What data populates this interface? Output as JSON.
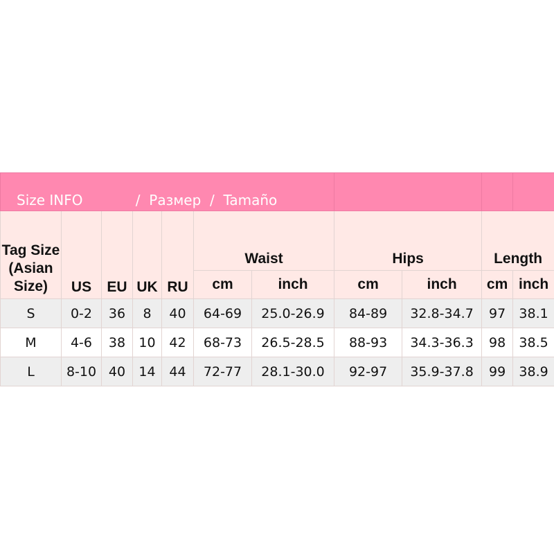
{
  "title": "Size INFO            /  Размер  /  Tamaño",
  "headers": {
    "tag": "Tag Size (Asian Size)",
    "us": "US",
    "eu": "EU",
    "uk": "UK",
    "ru": "RU",
    "waist": "Waist",
    "hips": "Hips",
    "length": "Length",
    "cm": "cm",
    "inch": "inch"
  },
  "rows": [
    [
      "S",
      "0-2",
      "36",
      "8",
      "40",
      "64-69",
      "25.0-26.9",
      "84-89",
      "32.8-34.7",
      "97",
      "38.1"
    ],
    [
      "M",
      "4-6",
      "38",
      "10",
      "42",
      "68-73",
      "26.5-28.5",
      "88-93",
      "34.3-36.3",
      "98",
      "38.5"
    ],
    [
      "L",
      "8-10",
      "40",
      "14",
      "44",
      "72-77",
      "28.1-30.0",
      "92-97",
      "35.9-37.8",
      "99",
      "38.9"
    ]
  ],
  "colors": {
    "title_bg": "#ff88b0",
    "header_bg": "#ffe9e6",
    "stripe": "#eeeeee"
  }
}
